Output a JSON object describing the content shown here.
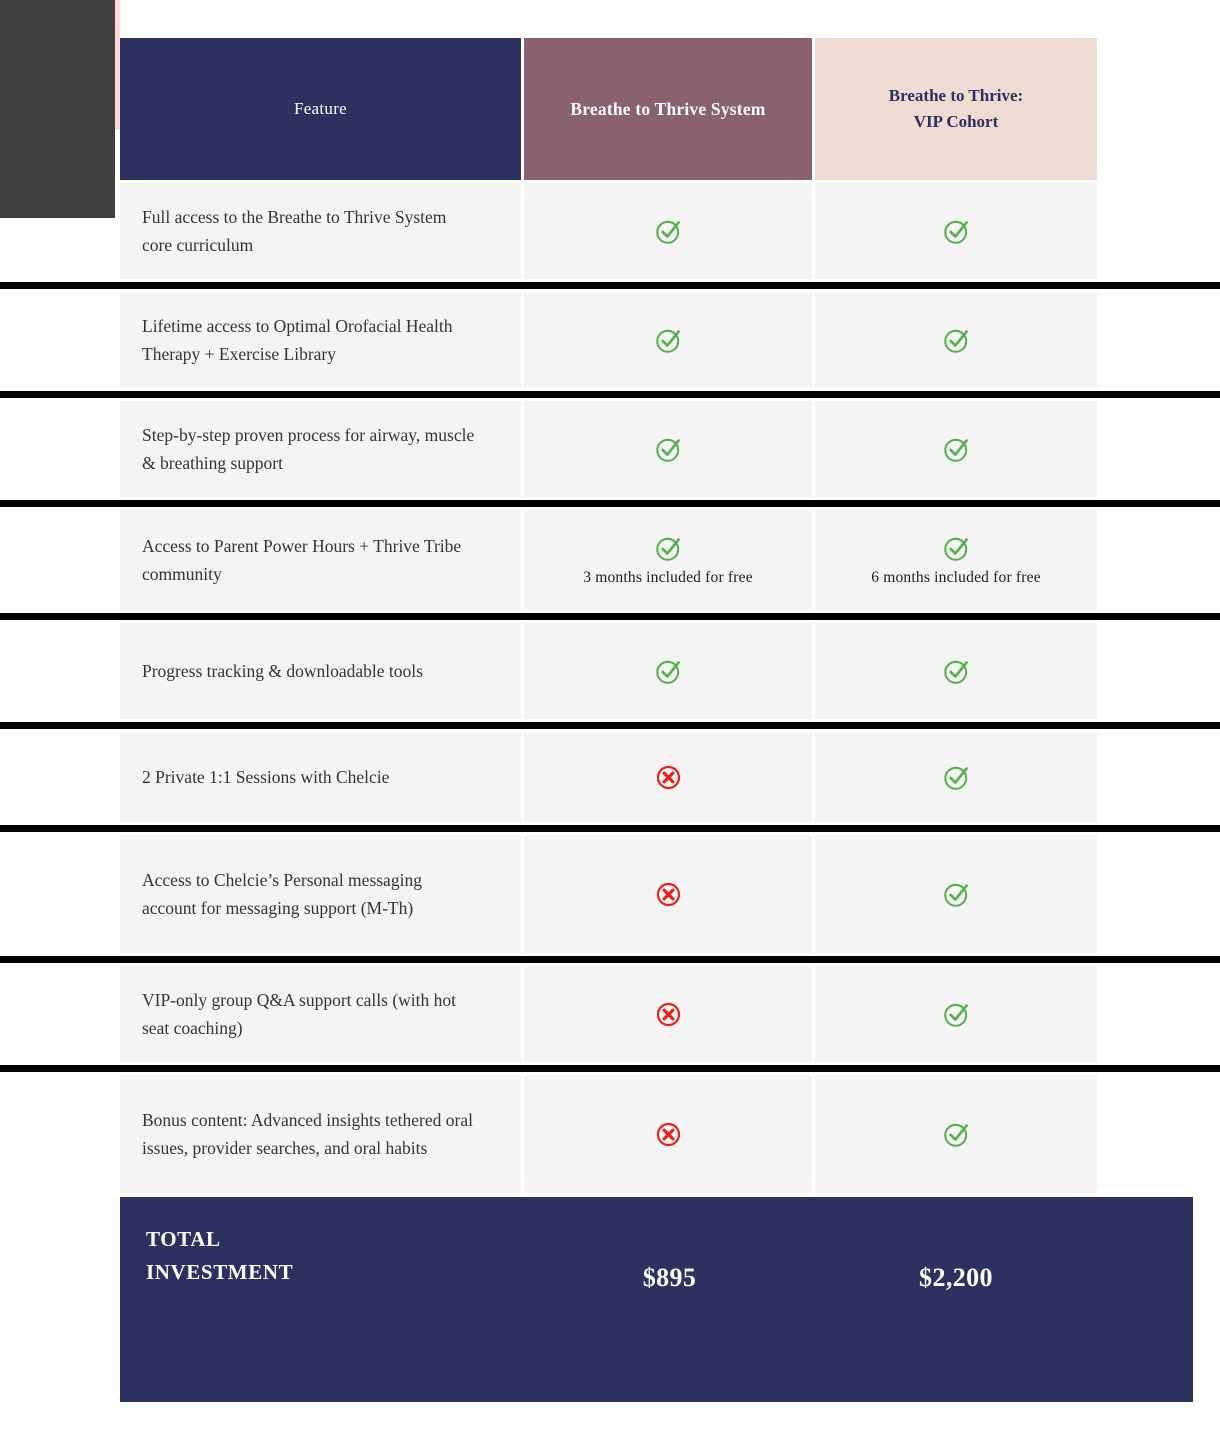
{
  "table": {
    "header": {
      "feature": "Feature",
      "system": "Breathe to Thrive System",
      "vip": "Breathe to Thrive:\nVIP Cohort"
    },
    "rows": [
      {
        "feature": "Full access to the Breathe to Thrive System core curriculum",
        "system": {
          "icon": "check",
          "note": ""
        },
        "vip": {
          "icon": "check",
          "note": ""
        }
      },
      {
        "feature": "Lifetime access to Optimal Orofacial Health Therapy + Exercise Library",
        "system": {
          "icon": "check",
          "note": ""
        },
        "vip": {
          "icon": "check",
          "note": ""
        }
      },
      {
        "feature": "Step-by-step proven process for airway, muscle & breathing support",
        "system": {
          "icon": "check",
          "note": ""
        },
        "vip": {
          "icon": "check",
          "note": ""
        }
      },
      {
        "feature": "Access to Parent Power Hours + Thrive Tribe community",
        "system": {
          "icon": "check",
          "note": "3 months included for free"
        },
        "vip": {
          "icon": "check",
          "note": "6 months included for free"
        }
      },
      {
        "feature": "Progress tracking & downloadable tools",
        "system": {
          "icon": "check",
          "note": ""
        },
        "vip": {
          "icon": "check",
          "note": ""
        }
      },
      {
        "feature": "2 Private 1:1 Sessions with Chelcie",
        "system": {
          "icon": "cross",
          "note": ""
        },
        "vip": {
          "icon": "check",
          "note": ""
        }
      },
      {
        "feature": "Access to Chelcie’s Personal messaging account for messaging support (M-Th)",
        "system": {
          "icon": "cross",
          "note": ""
        },
        "vip": {
          "icon": "check",
          "note": ""
        }
      },
      {
        "feature": "VIP-only group Q&A support calls (with hot seat coaching)",
        "system": {
          "icon": "cross",
          "note": ""
        },
        "vip": {
          "icon": "check",
          "note": ""
        }
      },
      {
        "feature": "Bonus content: Advanced insights tethered oral issues, provider searches, and oral habits",
        "system": {
          "icon": "cross",
          "note": ""
        },
        "vip": {
          "icon": "check",
          "note": ""
        }
      }
    ],
    "total": {
      "label": "TOTAL\nINVESTMENT",
      "system_price": "$895",
      "vip_price": "$2,200"
    }
  },
  "colors": {
    "header_navy": "#2d3160",
    "header_mauve": "#8a6170",
    "header_pink": "#eedbd4",
    "row_gray": "#f4f4f4",
    "separator_black": "#000000",
    "check_green": "#56ae4d",
    "cross_red": "#e6211a",
    "total_navy": "#2d3160",
    "accent_pink": "#ffd6da"
  }
}
